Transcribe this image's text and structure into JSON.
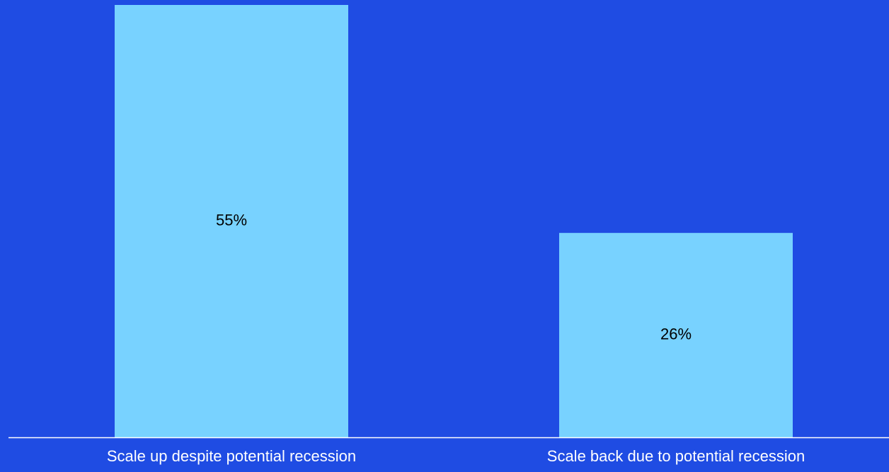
{
  "colors": {
    "background": "#1f4ce3",
    "bar": "#78d2ff",
    "axis_line": "#ffffff",
    "data_label": "#000000",
    "category_label": "#ffffff"
  },
  "chart_data": {
    "type": "bar",
    "categories": [
      "Scale up despite potential recession",
      "Scale back due to potential recession"
    ],
    "values": [
      55,
      26
    ],
    "data_labels": [
      "55%",
      "26%"
    ],
    "unit": "%",
    "ylim": [
      0,
      55
    ],
    "grid": false,
    "legend": "none"
  }
}
